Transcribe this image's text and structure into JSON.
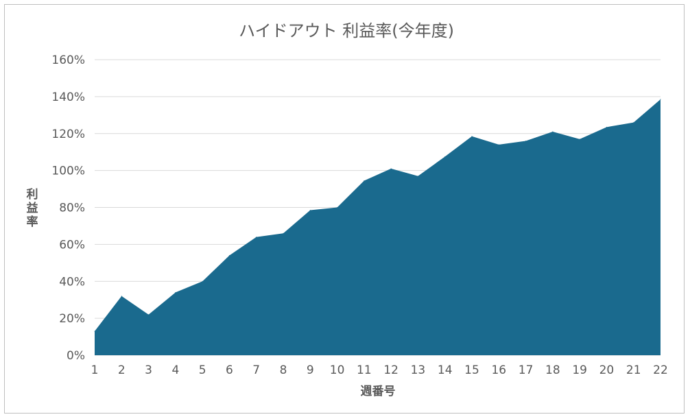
{
  "chart_data": {
    "type": "area",
    "title": "ハイドアウト 利益率(今年度)",
    "xlabel": "週番号",
    "ylabel": "利益率",
    "x": [
      1,
      2,
      3,
      4,
      5,
      6,
      7,
      8,
      9,
      10,
      11,
      12,
      13,
      14,
      15,
      16,
      17,
      18,
      19,
      20,
      21,
      22
    ],
    "values": [
      0.13,
      0.32,
      0.22,
      0.34,
      0.4,
      0.54,
      0.64,
      0.66,
      0.785,
      0.8,
      0.945,
      1.01,
      0.97,
      1.075,
      1.185,
      1.14,
      1.16,
      1.21,
      1.17,
      1.235,
      1.26,
      1.385
    ],
    "ylim": [
      0,
      1.6
    ],
    "yticks": [
      0,
      0.2,
      0.4,
      0.6,
      0.8,
      1.0,
      1.2,
      1.4,
      1.6
    ],
    "ytick_labels": [
      "0%",
      "20%",
      "40%",
      "60%",
      "80%",
      "100%",
      "120%",
      "140%",
      "160%"
    ],
    "grid": true,
    "legend": "none",
    "colors": {
      "area": "#1a6a8e"
    }
  }
}
